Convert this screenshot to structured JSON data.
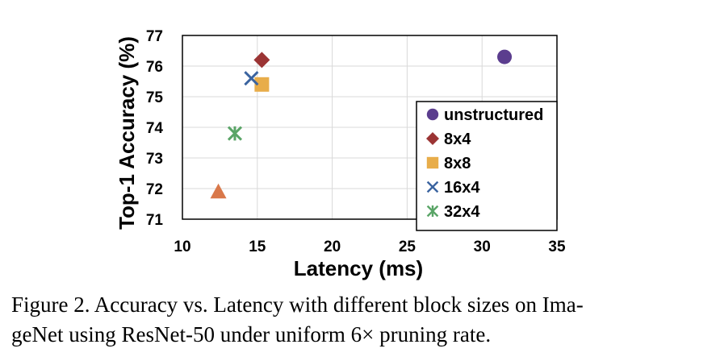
{
  "chart_data": {
    "type": "scatter",
    "title": "",
    "xlabel": "Latency (ms)",
    "ylabel": "Top-1 Accuracy (%)",
    "xlim": [
      10,
      35
    ],
    "ylim": [
      71,
      77
    ],
    "xticks": [
      10,
      15,
      20,
      25,
      30,
      35
    ],
    "yticks": [
      71,
      72,
      73,
      74,
      75,
      76,
      77
    ],
    "grid": true,
    "legend_position": "bottom-right",
    "series": [
      {
        "name": "unstructured",
        "marker": "circle",
        "color": "#5b3d8e",
        "points": [
          {
            "x": 31.5,
            "y": 76.3
          }
        ]
      },
      {
        "name": "8x4",
        "marker": "diamond",
        "color": "#9b3434",
        "points": [
          {
            "x": 15.3,
            "y": 76.2
          }
        ]
      },
      {
        "name": "8x8",
        "marker": "square",
        "color": "#e8ad4a",
        "points": [
          {
            "x": 15.3,
            "y": 75.4
          }
        ]
      },
      {
        "name": "16x4",
        "marker": "x",
        "color": "#3b64a0",
        "points": [
          {
            "x": 14.6,
            "y": 75.6
          }
        ]
      },
      {
        "name": "32x4",
        "marker": "asterisk",
        "color": "#5aa567",
        "points": [
          {
            "x": 13.5,
            "y": 73.8
          }
        ]
      },
      {
        "name": "",
        "marker": "triangle",
        "color": "#d9784a",
        "points": [
          {
            "x": 12.4,
            "y": 71.9
          }
        ]
      }
    ]
  },
  "caption": {
    "line1": "Figure 2. Accuracy vs. Latency with different block sizes on Ima-",
    "line2": "geNet using ResNet-50 under uniform 6× pruning rate."
  }
}
